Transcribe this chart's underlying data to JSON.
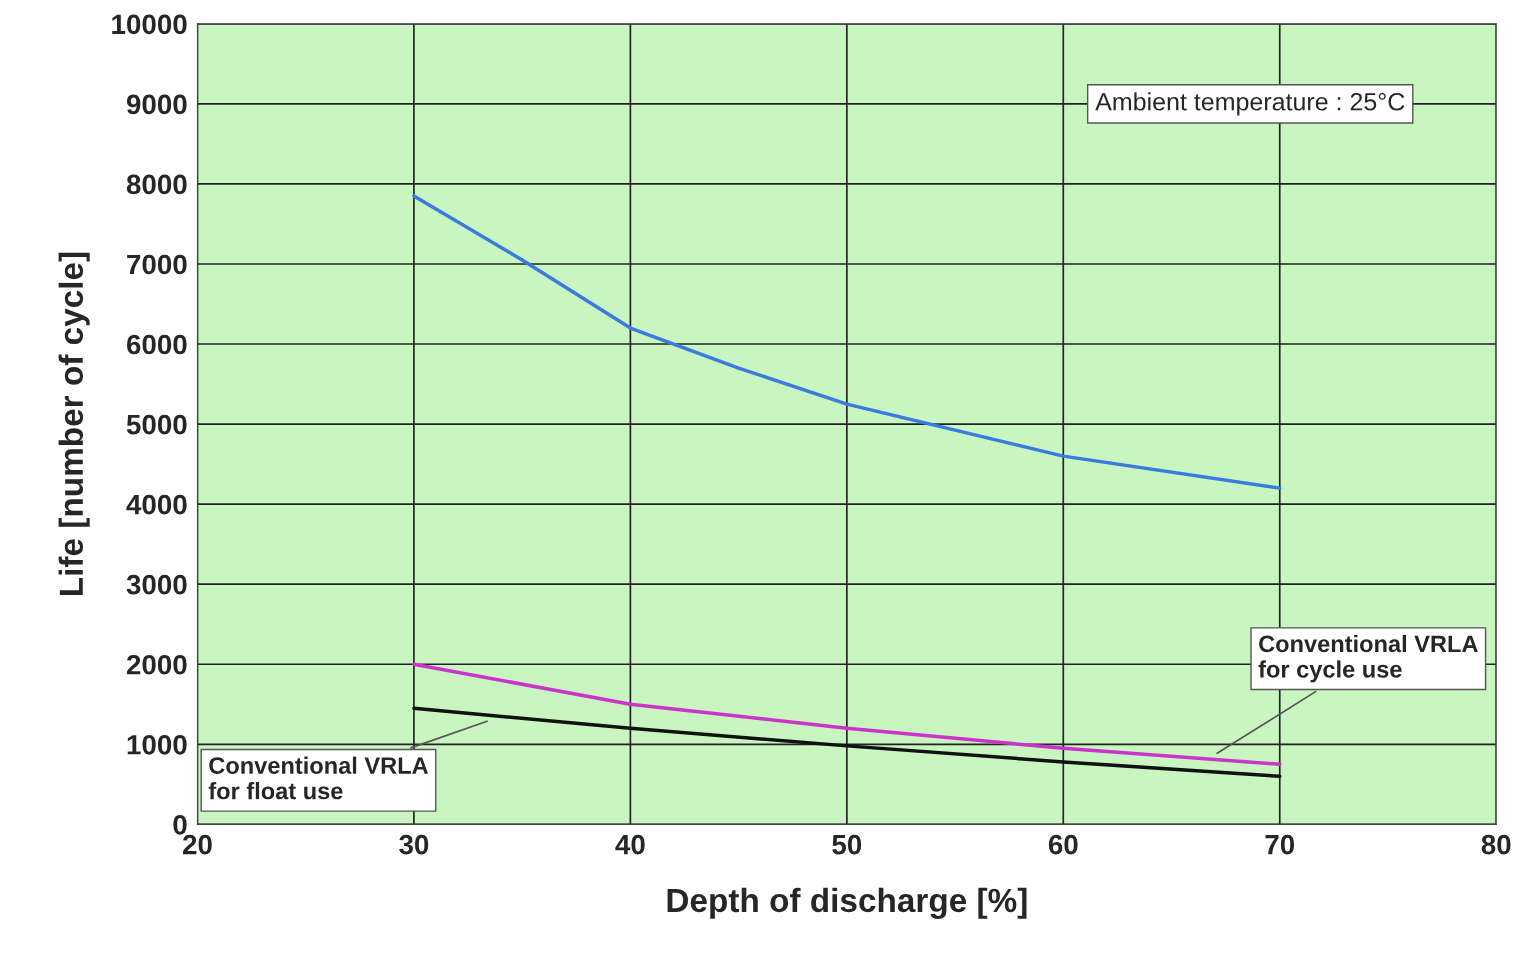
{
  "chart_data": {
    "type": "line",
    "xlabel": "Depth of discharge [%]",
    "ylabel": "Life [number of cycle]",
    "xlim": [
      20,
      80
    ],
    "xticks": [
      20,
      30,
      40,
      50,
      60,
      70,
      80
    ],
    "ylim": [
      0,
      10000
    ],
    "yticks": [
      0,
      1000,
      2000,
      3000,
      4000,
      5000,
      6000,
      7000,
      8000,
      9000,
      10000
    ],
    "grid": true,
    "legend": false,
    "series": [
      {
        "color": "#3a7be0",
        "x": [
          30,
          35,
          40,
          45,
          50,
          60,
          70
        ],
        "values": [
          7850,
          7050,
          6200,
          5700,
          5250,
          4600,
          4200
        ]
      },
      {
        "color": "#cc33cc",
        "x": [
          30,
          40,
          50,
          60,
          70
        ],
        "values": [
          2000,
          1500,
          1200,
          950,
          750
        ]
      },
      {
        "color": "#111111",
        "x": [
          30,
          40,
          50,
          60,
          70
        ],
        "values": [
          1450,
          1200,
          980,
          780,
          600
        ]
      }
    ],
    "annotations": [
      "Ambient temperature : 25°C",
      {
        "text": "Conventional VRLA\nfor cycle use",
        "x": 67,
        "y": 870
      },
      {
        "text": "Conventional VRLA\nfor float use",
        "x": 33.5,
        "y": 1300
      }
    ]
  }
}
